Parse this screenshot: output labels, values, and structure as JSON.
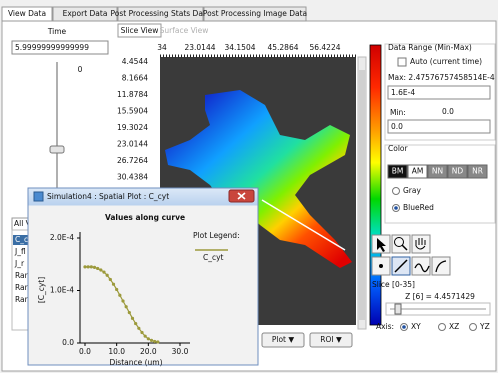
{
  "tabs": [
    "View Data",
    "Export Data",
    "Post Processing Stats Data",
    "Post Processing Image Data"
  ],
  "time": {
    "label": "Time",
    "value": "5.99999999999999",
    "slider_label": "0"
  },
  "variables": {
    "tab": "All V",
    "items": [
      "C_c",
      "J_fl",
      "J_r",
      "Ran",
      "Ran",
      "Ran"
    ]
  },
  "view_tabs": [
    "Slice View",
    "Surface View"
  ],
  "image": {
    "x_labels": [
      "34",
      "23.0144",
      "34.1504",
      "45.2864",
      "56.4224"
    ],
    "y_labels": [
      "4.4544",
      "8.1664",
      "11.8784",
      "15.5904",
      "19.3024",
      "23.0144",
      "26.7264",
      "30.4384",
      "34.1504"
    ]
  },
  "data_range": {
    "title": "Data Range (Min-Max)",
    "auto": "Auto (current time)",
    "max_text": "Max: 2.47576757458514E-4",
    "max_value": "1.6E-4",
    "min_label": "Min:",
    "min_text": "0.0",
    "min_value": "0.0"
  },
  "color": {
    "title": "Color",
    "buttons": [
      "BM",
      "AM",
      "NN",
      "ND",
      "NR"
    ],
    "options": [
      "Gray",
      "BlueRed"
    ]
  },
  "slice": {
    "title": "Slice [0-35]",
    "position": "Z [6] = 4.4571429",
    "axis_label": "Axis:",
    "axes": [
      "XY",
      "XZ",
      "YZ"
    ]
  },
  "buttons": [
    "Plot ▼",
    "ROI ▼"
  ],
  "popup": {
    "title": "Simulation4 : Spatial Plot : C_cyt"
  },
  "chart_data": {
    "type": "line",
    "title": "Values along curve",
    "legend_title": "Plot Legend:",
    "x_label": "Distance (um)",
    "y_label": "[C_cyt]",
    "x": [
      0,
      1,
      2,
      3,
      4,
      5,
      6,
      7,
      8,
      9,
      10,
      11,
      12,
      13,
      14,
      15,
      16,
      17,
      18,
      19,
      20,
      21,
      22,
      23
    ],
    "series": [
      {
        "name": "C_cyt",
        "color": "#9c9a3c",
        "values": [
          0.000145,
          0.000145,
          0.000145,
          0.000144,
          0.000142,
          0.000139,
          0.000135,
          0.000129,
          0.000121,
          0.000112,
          0.000102,
          9.1e-05,
          8e-05,
          6.9e-05,
          5.8e-05,
          4.7e-05,
          3.7e-05,
          2.8e-05,
          2e-05,
          1.3e-05,
          8e-06,
          5e-06,
          3e-06,
          2e-06
        ]
      }
    ],
    "xlim": [
      0,
      30
    ],
    "xticks": [
      {
        "value": 0,
        "label": "0.0"
      },
      {
        "value": 10,
        "label": "10.0"
      },
      {
        "value": 20,
        "label": "20.0"
      },
      {
        "value": 30,
        "label": "30.0"
      }
    ],
    "ylim": [
      0,
      0.0002
    ],
    "yticks": [
      {
        "value": 0,
        "label": "0.0"
      },
      {
        "value": 0.0001,
        "label": "1.0E-4"
      },
      {
        "value": 0.0002,
        "label": "2.0E-4"
      }
    ]
  }
}
